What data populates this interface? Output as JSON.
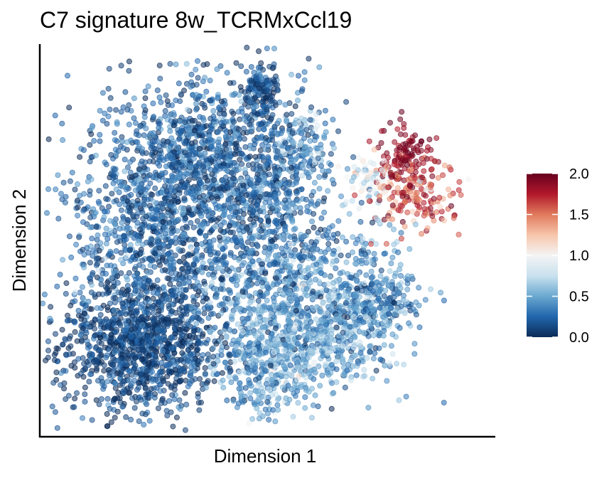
{
  "chart_data": {
    "type": "scatter",
    "title": "C7 signature 8w_TCRMxCcl19",
    "xlabel": "Dimension 1",
    "ylabel": "Dimension 2",
    "x_ticks_shown": false,
    "y_ticks_shown": false,
    "grid": false,
    "colorbar": {
      "label": "",
      "range": [
        0.0,
        2.0
      ],
      "ticks": [
        "0.0",
        "0.5",
        "1.0",
        "1.5",
        "2.0"
      ],
      "colormap": "RdBu_r",
      "placement": "right",
      "stops": [
        {
          "value": 0.0,
          "color": "#0b2a56"
        },
        {
          "value": 0.25,
          "color": "#2166ac"
        },
        {
          "value": 0.5,
          "color": "#6aa8d0"
        },
        {
          "value": 0.75,
          "color": "#c9e1ee"
        },
        {
          "value": 1.0,
          "color": "#f4f4f4"
        },
        {
          "value": 1.25,
          "color": "#f7c5ab"
        },
        {
          "value": 1.5,
          "color": "#e07a5c"
        },
        {
          "value": 1.75,
          "color": "#b2182b"
        },
        {
          "value": 2.0,
          "color": "#67001f"
        }
      ]
    },
    "point_style": {
      "opacity": 0.55
    },
    "clusters": [
      {
        "cx": -4.4,
        "cy": -3.2,
        "sx": 1.5,
        "sy": 1.1,
        "n": 1100,
        "mean": 0.12,
        "sd": 0.13
      },
      {
        "cx": -3.6,
        "cy": 0.6,
        "sx": 1.7,
        "sy": 1.9,
        "n": 1200,
        "mean": 0.22,
        "sd": 0.16
      },
      {
        "cx": -1.9,
        "cy": 2.8,
        "sx": 1.3,
        "sy": 1.1,
        "n": 500,
        "mean": 0.2,
        "sd": 0.15
      },
      {
        "cx": 0.0,
        "cy": 4.7,
        "sx": 0.35,
        "sy": 0.5,
        "n": 140,
        "mean": 0.15,
        "sd": 0.12
      },
      {
        "cx": 0.3,
        "cy": 1.5,
        "sx": 1.1,
        "sy": 1.5,
        "n": 600,
        "mean": 0.26,
        "sd": 0.17
      },
      {
        "cx": 1.6,
        "cy": -1.6,
        "sx": 1.9,
        "sy": 1.2,
        "n": 800,
        "mean": 0.42,
        "sd": 0.2
      },
      {
        "cx": 0.3,
        "cy": -3.7,
        "sx": 1.0,
        "sy": 0.8,
        "n": 450,
        "mean": 0.5,
        "sd": 0.2
      },
      {
        "cx": 2.9,
        "cy": -3.2,
        "sx": 0.9,
        "sy": 0.7,
        "n": 220,
        "mean": 0.5,
        "sd": 0.22
      },
      {
        "cx": 4.3,
        "cy": -1.9,
        "sx": 0.8,
        "sy": 0.5,
        "n": 200,
        "mean": 0.38,
        "sd": 0.2
      },
      {
        "cx": 1.5,
        "cy": 2.9,
        "sx": 0.45,
        "sy": 0.6,
        "n": 100,
        "mean": 0.5,
        "sd": 0.25
      },
      {
        "cx": 5.3,
        "cy": 2.6,
        "sx": 0.5,
        "sy": 0.5,
        "n": 110,
        "mean": 1.9,
        "sd": 0.1
      },
      {
        "cx": 5.7,
        "cy": 1.4,
        "sx": 0.8,
        "sy": 0.55,
        "n": 160,
        "mean": 1.55,
        "sd": 0.25
      },
      {
        "cx": 4.2,
        "cy": 1.8,
        "sx": 0.6,
        "sy": 0.4,
        "n": 70,
        "mean": 0.95,
        "sd": 0.25
      },
      {
        "cx": -6.0,
        "cy": 0.3,
        "sx": 0.7,
        "sy": 1.1,
        "n": 20,
        "mean": 0.4,
        "sd": 0.2
      }
    ],
    "xlim": [
      -8.0,
      8.5
    ],
    "ylim": [
      -6.0,
      6.0
    ]
  }
}
